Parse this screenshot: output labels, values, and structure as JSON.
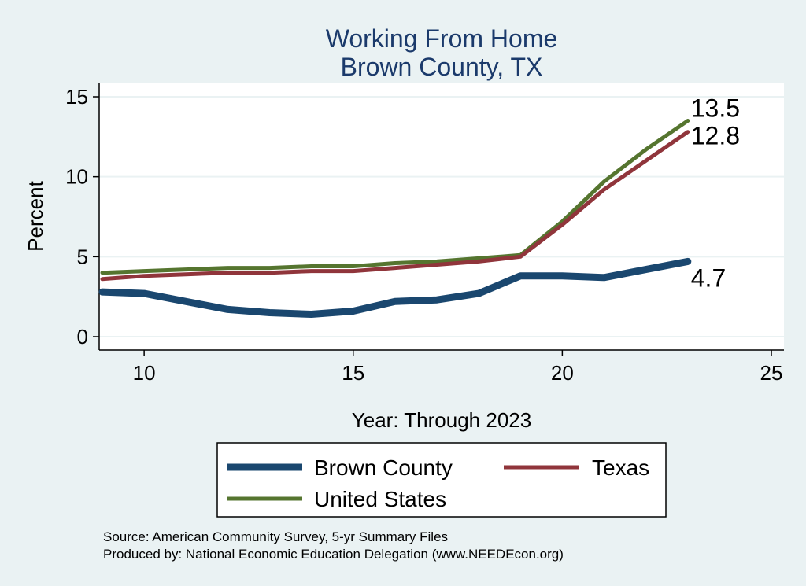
{
  "chart_data": {
    "type": "line",
    "title": "Working From Home",
    "subtitle": "Brown County, TX",
    "xlabel": "Year: Through 2023",
    "ylabel": "Percent",
    "xlim": [
      9,
      25
    ],
    "ylim": [
      0,
      15
    ],
    "xticks": [
      "10",
      "15",
      "20",
      "25"
    ],
    "yticks": [
      "0",
      "5",
      "10",
      "15"
    ],
    "grid": true,
    "legend_position": "bottom",
    "x": [
      9,
      10,
      11,
      12,
      13,
      14,
      15,
      16,
      17,
      18,
      19,
      20,
      21,
      22,
      23
    ],
    "series": [
      {
        "name": "Brown County",
        "color": "#1a476f",
        "values": [
          2.8,
          2.7,
          2.2,
          1.7,
          1.5,
          1.4,
          1.6,
          2.2,
          2.3,
          2.7,
          3.8,
          3.8,
          3.7,
          4.2,
          4.7
        ],
        "end_label": "4.7"
      },
      {
        "name": "Texas",
        "color": "#90353b",
        "values": [
          3.6,
          3.8,
          3.9,
          4.0,
          4.0,
          4.1,
          4.1,
          4.3,
          4.5,
          4.7,
          5.0,
          7.0,
          9.2,
          11.0,
          12.8
        ],
        "end_label": "12.8"
      },
      {
        "name": "United States",
        "color": "#55752f",
        "values": [
          4.0,
          4.1,
          4.2,
          4.3,
          4.3,
          4.4,
          4.4,
          4.6,
          4.7,
          4.9,
          5.1,
          7.2,
          9.7,
          11.7,
          13.5
        ],
        "end_label": "13.5"
      }
    ],
    "source_lines": [
      "Source: American Community Survey, 5-yr Summary Files",
      "Produced by: National Economic Education Delegation (www.NEEDEcon.org)"
    ]
  }
}
